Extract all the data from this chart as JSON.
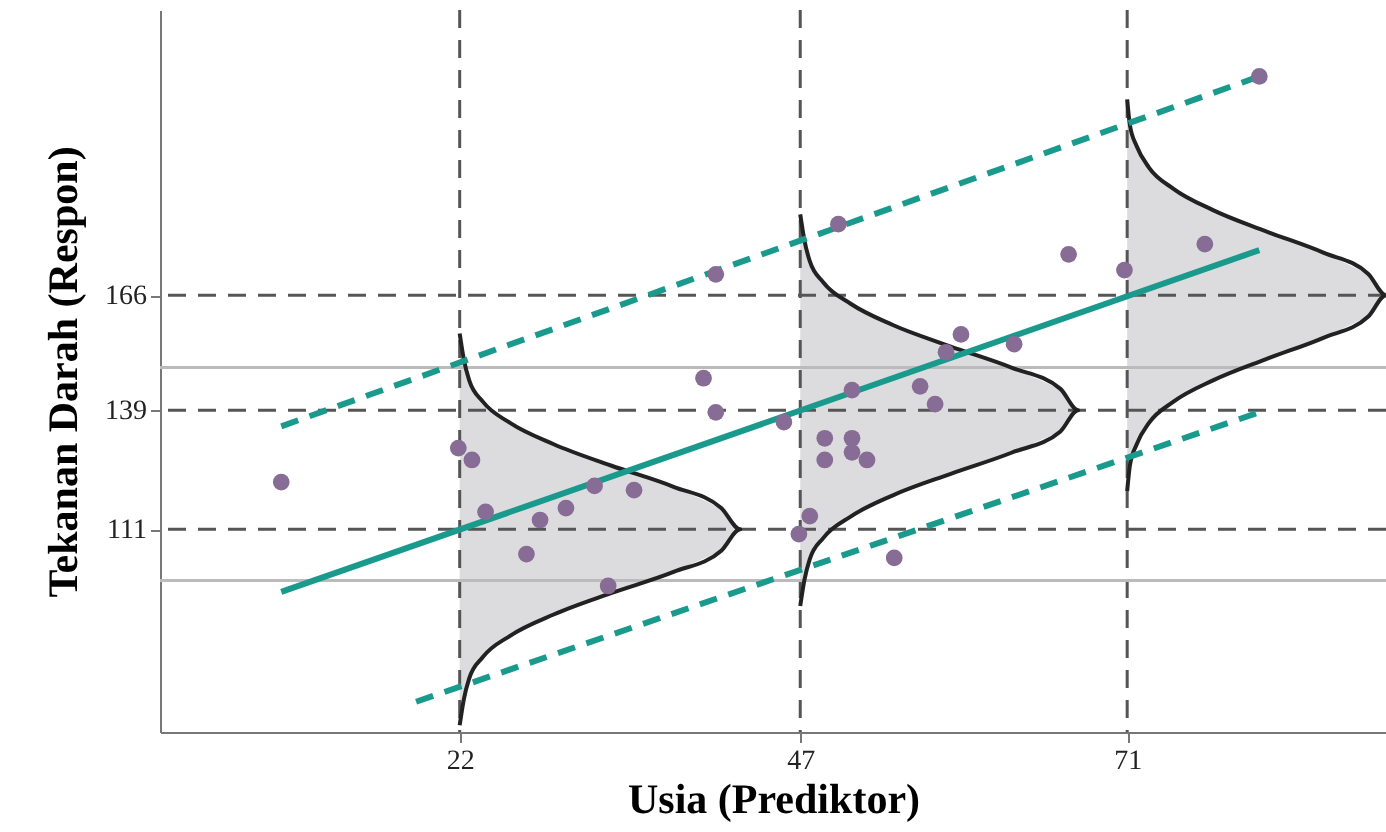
{
  "chart_data": {
    "type": "scatter",
    "xlabel": "Usia (Prediktor)",
    "ylabel": "Tekanan Darah (Respon)",
    "xlim": [
      0,
      90
    ],
    "ylim": [
      63.4,
      233
    ],
    "xticks": [
      22,
      47,
      71
    ],
    "yticks": [
      111,
      139,
      166
    ],
    "grid": false,
    "series": [
      {
        "type": "line",
        "color": "#222222",
        "x": [
          22,
          22.3,
          22.7,
          23.7,
          25.7,
          28.9,
          33.1,
          37.7,
          41.2,
          42.6,
          41.2,
          37.7,
          33.1,
          28.9,
          25.7,
          23.7,
          22.7,
          22.3,
          22
        ],
        "values": [
          65,
          71,
          76,
          81,
          86,
          91,
          96,
          101,
          106,
          111,
          116,
          121,
          126,
          131,
          136,
          141,
          146,
          151,
          157
        ]
      },
      {
        "type": "line",
        "color": "#222222",
        "x": [
          47,
          47.3,
          47.7,
          48.7,
          50.7,
          53.8,
          58.0,
          62.5,
          66.1,
          67.4,
          66.1,
          62.5,
          58.0,
          53.8,
          50.7,
          48.7,
          47.7,
          47.3,
          47
        ],
        "values": [
          93,
          99,
          104,
          109,
          114,
          119,
          124,
          129,
          134,
          139,
          144,
          149,
          154,
          159,
          164,
          169,
          174,
          179,
          185
        ]
      },
      {
        "type": "line",
        "color": "#222222",
        "x": [
          71,
          71.2,
          71.7,
          72.6,
          74.4,
          77.3,
          81.2,
          85.4,
          88.7,
          90,
          88.7,
          85.4,
          81.2,
          77.3,
          74.4,
          72.6,
          71.7,
          71.2,
          71
        ],
        "values": [
          120,
          126,
          131,
          136,
          141,
          146,
          151,
          156,
          161,
          166,
          171,
          176,
          181,
          186,
          191,
          196,
          201,
          206,
          212
        ]
      },
      {
        "type": "line",
        "color": "#1a9a8c",
        "line_style": "solid",
        "x": [
          8.9,
          80.7
        ],
        "values": [
          96.3,
          176.6
        ]
      },
      {
        "type": "line",
        "color": "#1a9a8c",
        "line_style": "dashed",
        "x": [
          8.9,
          80.7
        ],
        "values": [
          135.2,
          217.4
        ]
      },
      {
        "type": "line",
        "color": "#1a9a8c",
        "line_style": "dashed",
        "x": [
          18.8,
          80.7
        ],
        "values": [
          70.5,
          138.5
        ]
      },
      {
        "marker": "circle",
        "color": "#876c96",
        "x": [
          8.9,
          21.9,
          22.9,
          23.9,
          26.9,
          27.9,
          29.8,
          31.9,
          34.8,
          32.9,
          39.9,
          40.8,
          40.8,
          49.8,
          45.8,
          50.8,
          48.8,
          50.8,
          48.8,
          50.8,
          51.9,
          55.8,
          56.9,
          57.7,
          58.8,
          62.7,
          47.7,
          46.9,
          53.9,
          66.7,
          70.8,
          76.7,
          80.7
        ],
        "values": [
          122.1,
          130.1,
          127.3,
          115.1,
          105.2,
          113.2,
          116.0,
          121.2,
          120.2,
          97.7,
          146.5,
          138.5,
          170.9,
          182.7,
          136.2,
          143.7,
          132.4,
          132.4,
          127.3,
          129.1,
          127.3,
          144.6,
          140.4,
          152.6,
          156.8,
          154.5,
          114.1,
          109.9,
          104.3,
          175.6,
          171.9,
          178.0,
          217.4
        ]
      }
    ],
    "ref_lines": [
      {
        "axis": "x",
        "value": 22,
        "color": "#555555",
        "line_style": "dashed"
      },
      {
        "axis": "x",
        "value": 47,
        "color": "#555555",
        "line_style": "dashed"
      },
      {
        "axis": "x",
        "value": 71,
        "color": "#555555",
        "line_style": "dashed"
      },
      {
        "axis": "y",
        "value": 111,
        "color": "#555555",
        "line_style": "dashed"
      },
      {
        "axis": "y",
        "value": 139,
        "color": "#555555",
        "line_style": "dashed"
      },
      {
        "axis": "y",
        "value": 166,
        "color": "#555555",
        "line_style": "dashed"
      },
      {
        "axis": "y",
        "value": 149,
        "color": "#bbbbbb",
        "line_style": "solid"
      },
      {
        "axis": "y",
        "value": 99,
        "color": "#bbbbbb",
        "line_style": "solid"
      }
    ]
  }
}
